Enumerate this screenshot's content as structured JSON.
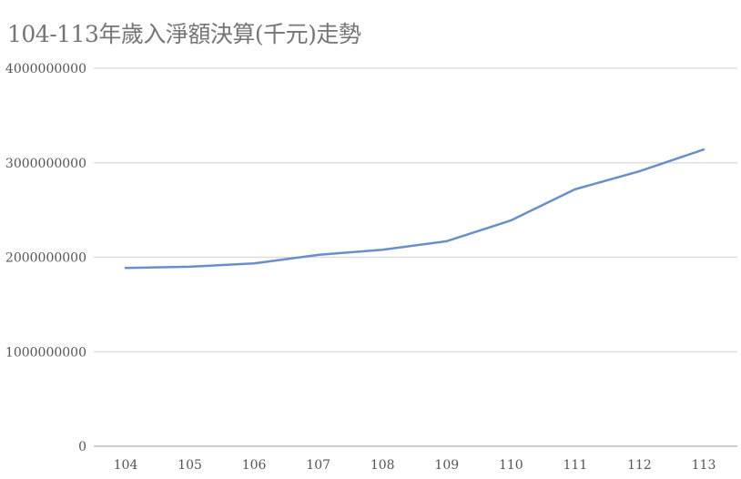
{
  "chart_data": {
    "type": "line",
    "title": "104-113年歲入淨額決算(千元)走勢",
    "xlabel": "",
    "ylabel": "",
    "categories": [
      "104",
      "105",
      "106",
      "107",
      "108",
      "109",
      "110",
      "111",
      "112",
      "113"
    ],
    "series": [
      {
        "values": [
          1887000000,
          1900000000,
          1935000000,
          2025000000,
          2080000000,
          2170000000,
          2390000000,
          2720000000,
          2910000000,
          3140000000
        ],
        "color": "#6a8fc8"
      }
    ],
    "ylim": [
      0,
      4000000000
    ],
    "yticks": [
      "0",
      "1000000000",
      "2000000000",
      "3000000000",
      "4000000000"
    ],
    "grid": true,
    "legend": "none"
  }
}
